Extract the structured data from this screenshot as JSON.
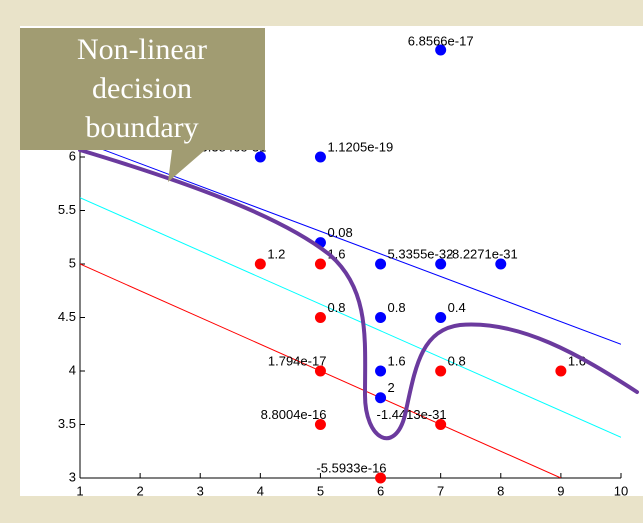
{
  "chart_data": {
    "type": "scatter",
    "xlim": [
      1,
      10
    ],
    "ylim": [
      3,
      7.1
    ],
    "xticks": [
      1,
      2,
      3,
      4,
      5,
      6,
      7,
      8,
      9,
      10
    ],
    "yticks": [
      3,
      3.5,
      4,
      4.5,
      5,
      5.5,
      6
    ],
    "x": [
      7,
      4,
      5,
      5,
      4,
      5,
      6,
      7,
      8,
      5,
      6,
      7,
      5,
      6,
      7,
      9,
      6,
      5,
      7,
      6
    ],
    "y": [
      7,
      6,
      6,
      5.2,
      5,
      5,
      5,
      5,
      5,
      4.5,
      4.5,
      4.5,
      4,
      4,
      4,
      4,
      3.75,
      3.5,
      3.5,
      3
    ],
    "colors": [
      "#0000ff",
      "#0000ff",
      "#0000ff",
      "#0000ff",
      "#ff0000",
      "#ff0000",
      "#0000ff",
      "#0000ff",
      "#0000ff",
      "#ff0000",
      "#0000ff",
      "#0000ff",
      "#ff0000",
      "#0000ff",
      "#ff0000",
      "#ff0000",
      "#0000ff",
      "#ff0000",
      "#ff0000",
      "#ff0000"
    ],
    "point_labels": [
      "6.8566e-17",
      "-6.3846e-31",
      "1.1205e-19",
      "0.08",
      "1.2",
      "1.6",
      "5.3355e-32",
      "-8.2271e-31",
      null,
      "0.8",
      "0.8",
      "0.4",
      "1.794e-17",
      "1.6",
      "0.8",
      "1.6",
      "2",
      "8.8004e-16",
      "-1.4413e-31",
      "-5.5933e-16"
    ],
    "lines": [
      {
        "color": "#0000ff",
        "x": [
          1,
          10
        ],
        "y": [
          6.15,
          4.25
        ]
      },
      {
        "color": "#00ffff",
        "x": [
          1,
          10
        ],
        "y": [
          5.62,
          3.38
        ]
      },
      {
        "color": "#ff0000",
        "x": [
          1,
          9
        ],
        "y": [
          5,
          3
        ]
      }
    ],
    "annotation": [
      "Non-linear",
      "decision",
      "boundary"
    ]
  }
}
